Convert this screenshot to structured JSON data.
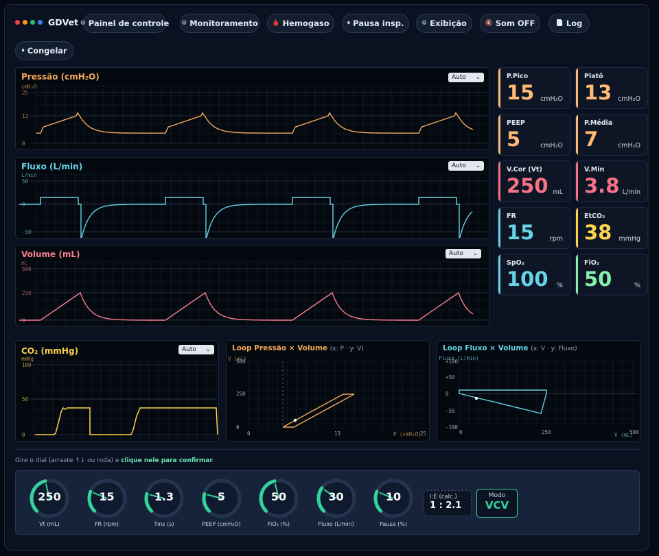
{
  "app": {
    "title": "GDVet",
    "dot_colors": [
      "#ef4444",
      "#f59e0b",
      "#22c55e",
      "#3b82f6"
    ]
  },
  "toolbar": [
    {
      "name": "painel-button",
      "icon": "gear-icon",
      "glyph": "⚙",
      "label": "Painel de controle"
    },
    {
      "name": "monitoramento-button",
      "icon": "gear-icon",
      "glyph": "⚙",
      "label": "Monitoramento"
    },
    {
      "name": "hemogaso-button",
      "icon": "blood-drop-icon",
      "glyph": "🩸",
      "label": "Hemogaso"
    },
    {
      "name": "pausa-insp-button",
      "icon": "pause-icon",
      "glyph": "⏸",
      "label": "Pausa insp."
    },
    {
      "name": "exibicao-button",
      "icon": "gear-icon",
      "glyph": "⚙",
      "label": "Exibição"
    },
    {
      "name": "som-button",
      "icon": "speaker-mute-icon",
      "glyph": "🔇",
      "label": "Som OFF"
    },
    {
      "name": "log-button",
      "icon": "log-icon",
      "glyph": "📄",
      "label": "Log"
    },
    {
      "name": "congelar-button",
      "icon": "pause-icon",
      "glyph": "⏸",
      "label": "Congelar"
    }
  ],
  "waves": {
    "pressure": {
      "title": "Pressão (cmH₂O)",
      "unit": "cmH₂O",
      "scale": "Auto",
      "ticks": [
        "25",
        "13",
        "0"
      ],
      "color": "#f3a95a"
    },
    "flow": {
      "title": "Fluxo (L/min)",
      "unit": "L/min",
      "scale": "Auto",
      "ticks": [
        "50",
        "0",
        "-50"
      ],
      "color": "#67d3e6"
    },
    "volume": {
      "title": "Volume (mL)",
      "unit": "mL",
      "scale": "Auto",
      "ticks": [
        "500",
        "250",
        "0"
      ],
      "color": "#f77f8a"
    },
    "co2": {
      "title": "CO₂ (mmHg)",
      "unit": "mmHg",
      "scale": "Auto",
      "ticks": [
        "100",
        "50",
        "0"
      ],
      "color": "#fcd34d"
    }
  },
  "loops": {
    "pv": {
      "title": "Loop Pressão × Volume",
      "sub": "(x: P · y: V)",
      "y_label": "V (mL)",
      "x_label": "P (cmH₂O)",
      "y_ticks": [
        "500",
        "250",
        "0"
      ],
      "x_ticks": [
        "0",
        "13",
        "25"
      ],
      "color": "#f3a95a"
    },
    "fv": {
      "title": "Loop Fluxo × Volume",
      "sub": "(x: V · y: Fluxo)",
      "y_label": "Fluxo (L/min)",
      "x_label": "V (mL)",
      "y_ticks": [
        "+100",
        "+50",
        "0",
        "-50",
        "-100"
      ],
      "x_ticks": [
        "0",
        "250",
        "500"
      ],
      "color": "#67d3e6"
    }
  },
  "metrics": [
    {
      "label": "P.Pico",
      "value": "15",
      "unit": "cmH₂O",
      "color": "#fdba74"
    },
    {
      "label": "Platô",
      "value": "13",
      "unit": "cmH₂O",
      "color": "#fdba74"
    },
    {
      "label": "PEEP",
      "value": "5",
      "unit": "cmH₂O",
      "color": "#fdba74"
    },
    {
      "label": "P.Média",
      "value": "7",
      "unit": "cmH₂O",
      "color": "#fdba74"
    },
    {
      "label": "V.Cor (Vt)",
      "value": "250",
      "unit": "mL",
      "color": "#f87185"
    },
    {
      "label": "V.Min",
      "value": "3.8",
      "unit": "L/min",
      "color": "#f87185"
    },
    {
      "label": "FR",
      "value": "15",
      "unit": "rpm",
      "color": "#67d3e6"
    },
    {
      "label": "EtCO₂",
      "value": "38",
      "unit": "mmHg",
      "color": "#fcd34d"
    },
    {
      "label": "SpO₂",
      "value": "100",
      "unit": "%",
      "color": "#67d3e6"
    },
    {
      "label": "FiO₂",
      "value": "50",
      "unit": "%",
      "color": "#86efac"
    }
  ],
  "hint": {
    "text": "Gire o dial (arraste ↑↓ ou roda) e ",
    "bold": "clique nele para confirmar",
    "end": "."
  },
  "dials": [
    {
      "name": "dial-vt",
      "value": "250",
      "label": "Vt (mL)",
      "fraction": 0.45
    },
    {
      "name": "dial-fr",
      "value": "15",
      "label": "FR (rpm)",
      "fraction": 0.25
    },
    {
      "name": "dial-tins",
      "value": "1.3",
      "label": "Tins (s)",
      "fraction": 0.22
    },
    {
      "name": "dial-peep",
      "value": "5",
      "label": "PEEP (cmH₂O)",
      "fraction": 0.22
    },
    {
      "name": "dial-fio2",
      "value": "50",
      "label": "FiO₂ (%)",
      "fraction": 0.45
    },
    {
      "name": "dial-fluxo",
      "value": "30",
      "label": "Fluxo (L/min)",
      "fraction": 0.3
    },
    {
      "name": "dial-pausa",
      "value": "10",
      "label": "Pausa (%)",
      "fraction": 0.25
    }
  ],
  "ie": {
    "label": "I:E (calc.)",
    "value": "1 : 2.1"
  },
  "mode": {
    "label": "Modo",
    "value": "VCV"
  }
}
